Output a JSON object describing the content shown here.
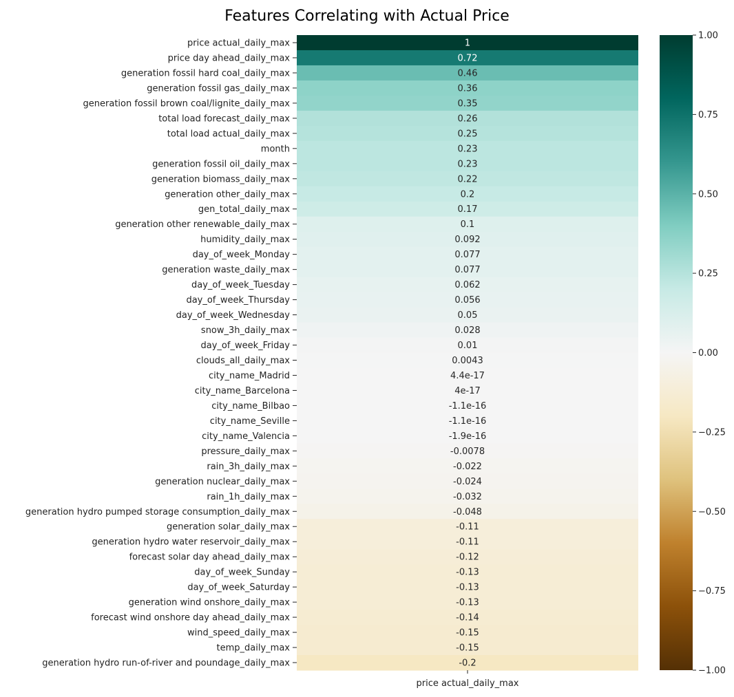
{
  "chart_data": {
    "type": "heatmap",
    "title": "Features Correlating with Actual Price",
    "column": "price actual_daily_max",
    "colormap": "BrBG",
    "vmin": -1,
    "vmax": 1,
    "colorbar_ticks": [
      "1.00",
      "0.75",
      "0.50",
      "0.25",
      "0.00",
      "−0.25",
      "−0.50",
      "−0.75",
      "−1.00"
    ],
    "rows": [
      {
        "label": "price actual_daily_max",
        "value": 1,
        "text": "1"
      },
      {
        "label": "price day ahead_daily_max",
        "value": 0.72,
        "text": "0.72"
      },
      {
        "label": "generation fossil hard coal_daily_max",
        "value": 0.46,
        "text": "0.46"
      },
      {
        "label": "generation fossil gas_daily_max",
        "value": 0.36,
        "text": "0.36"
      },
      {
        "label": "generation fossil brown coal/lignite_daily_max",
        "value": 0.35,
        "text": "0.35"
      },
      {
        "label": "total load forecast_daily_max",
        "value": 0.26,
        "text": "0.26"
      },
      {
        "label": "total load actual_daily_max",
        "value": 0.25,
        "text": "0.25"
      },
      {
        "label": "month",
        "value": 0.23,
        "text": "0.23"
      },
      {
        "label": "generation fossil oil_daily_max",
        "value": 0.23,
        "text": "0.23"
      },
      {
        "label": "generation biomass_daily_max",
        "value": 0.22,
        "text": "0.22"
      },
      {
        "label": "generation other_daily_max",
        "value": 0.2,
        "text": "0.2"
      },
      {
        "label": "gen_total_daily_max",
        "value": 0.17,
        "text": "0.17"
      },
      {
        "label": "generation other renewable_daily_max",
        "value": 0.1,
        "text": "0.1"
      },
      {
        "label": "humidity_daily_max",
        "value": 0.092,
        "text": "0.092"
      },
      {
        "label": "day_of_week_Monday",
        "value": 0.077,
        "text": "0.077"
      },
      {
        "label": "generation waste_daily_max",
        "value": 0.077,
        "text": "0.077"
      },
      {
        "label": "day_of_week_Tuesday",
        "value": 0.062,
        "text": "0.062"
      },
      {
        "label": "day_of_week_Thursday",
        "value": 0.056,
        "text": "0.056"
      },
      {
        "label": "day_of_week_Wednesday",
        "value": 0.05,
        "text": "0.05"
      },
      {
        "label": "snow_3h_daily_max",
        "value": 0.028,
        "text": "0.028"
      },
      {
        "label": "day_of_week_Friday",
        "value": 0.01,
        "text": "0.01"
      },
      {
        "label": "clouds_all_daily_max",
        "value": 0.0043,
        "text": "0.0043"
      },
      {
        "label": "city_name_Madrid",
        "value": 4.4e-17,
        "text": "4.4e-17"
      },
      {
        "label": "city_name_Barcelona",
        "value": 4e-17,
        "text": "4e-17"
      },
      {
        "label": "city_name_Bilbao",
        "value": -1.1e-16,
        "text": "-1.1e-16"
      },
      {
        "label": "city_name_Seville",
        "value": -1.1e-16,
        "text": "-1.1e-16"
      },
      {
        "label": "city_name_Valencia",
        "value": -1.9e-16,
        "text": "-1.9e-16"
      },
      {
        "label": "pressure_daily_max",
        "value": -0.0078,
        "text": "-0.0078"
      },
      {
        "label": "rain_3h_daily_max",
        "value": -0.022,
        "text": "-0.022"
      },
      {
        "label": "generation nuclear_daily_max",
        "value": -0.024,
        "text": "-0.024"
      },
      {
        "label": "rain_1h_daily_max",
        "value": -0.032,
        "text": "-0.032"
      },
      {
        "label": "generation hydro pumped storage consumption_daily_max",
        "value": -0.048,
        "text": "-0.048"
      },
      {
        "label": "generation solar_daily_max",
        "value": -0.11,
        "text": "-0.11"
      },
      {
        "label": "generation hydro water reservoir_daily_max",
        "value": -0.11,
        "text": "-0.11"
      },
      {
        "label": "forecast solar day ahead_daily_max",
        "value": -0.12,
        "text": "-0.12"
      },
      {
        "label": "day_of_week_Sunday",
        "value": -0.13,
        "text": "-0.13"
      },
      {
        "label": "day_of_week_Saturday",
        "value": -0.13,
        "text": "-0.13"
      },
      {
        "label": "generation wind onshore_daily_max",
        "value": -0.13,
        "text": "-0.13"
      },
      {
        "label": "forecast wind onshore day ahead_daily_max",
        "value": -0.14,
        "text": "-0.14"
      },
      {
        "label": "wind_speed_daily_max",
        "value": -0.15,
        "text": "-0.15"
      },
      {
        "label": "temp_daily_max",
        "value": -0.15,
        "text": "-0.15"
      },
      {
        "label": "generation hydro run-of-river and poundage_daily_max",
        "value": -0.2,
        "text": "-0.2"
      }
    ]
  }
}
